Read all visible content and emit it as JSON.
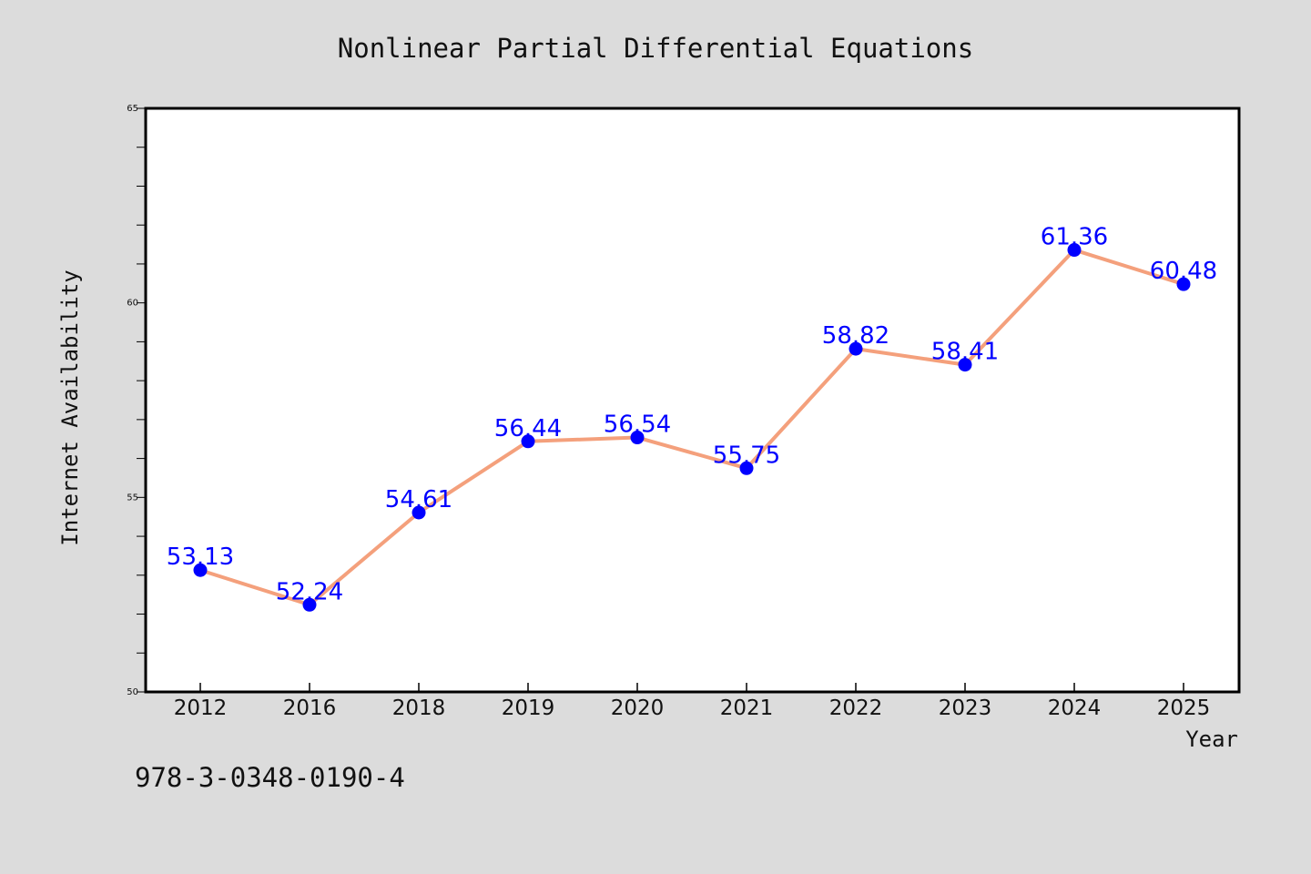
{
  "chart_data": {
    "type": "line",
    "title": "Nonlinear Partial Differential Equations",
    "xlabel": "Year",
    "ylabel": "Internet Availability",
    "categories": [
      "2012",
      "2016",
      "2018",
      "2019",
      "2020",
      "2021",
      "2022",
      "2023",
      "2024",
      "2025"
    ],
    "series": [
      {
        "values": [
          53.13,
          52.24,
          54.61,
          56.44,
          56.54,
          55.75,
          58.82,
          58.41,
          61.36,
          60.48
        ],
        "data_labels": [
          "53.13",
          "52.24",
          "54.61",
          "56.44",
          "56.54",
          "55.75",
          "58.82",
          "58.41",
          "61.36",
          "60.48"
        ]
      }
    ],
    "ylim": [
      50,
      65
    ],
    "yticks": [
      "50",
      "55",
      "60",
      "65"
    ],
    "y_minor_step": 1,
    "grid": false,
    "line_color": "#f4a07c",
    "marker_color": "#0000ff",
    "label_color": "#0000ff",
    "background_color": "#dcdcdc",
    "plot_background_color": "#ffffff"
  },
  "annotation": "978-3-0348-0190-4"
}
